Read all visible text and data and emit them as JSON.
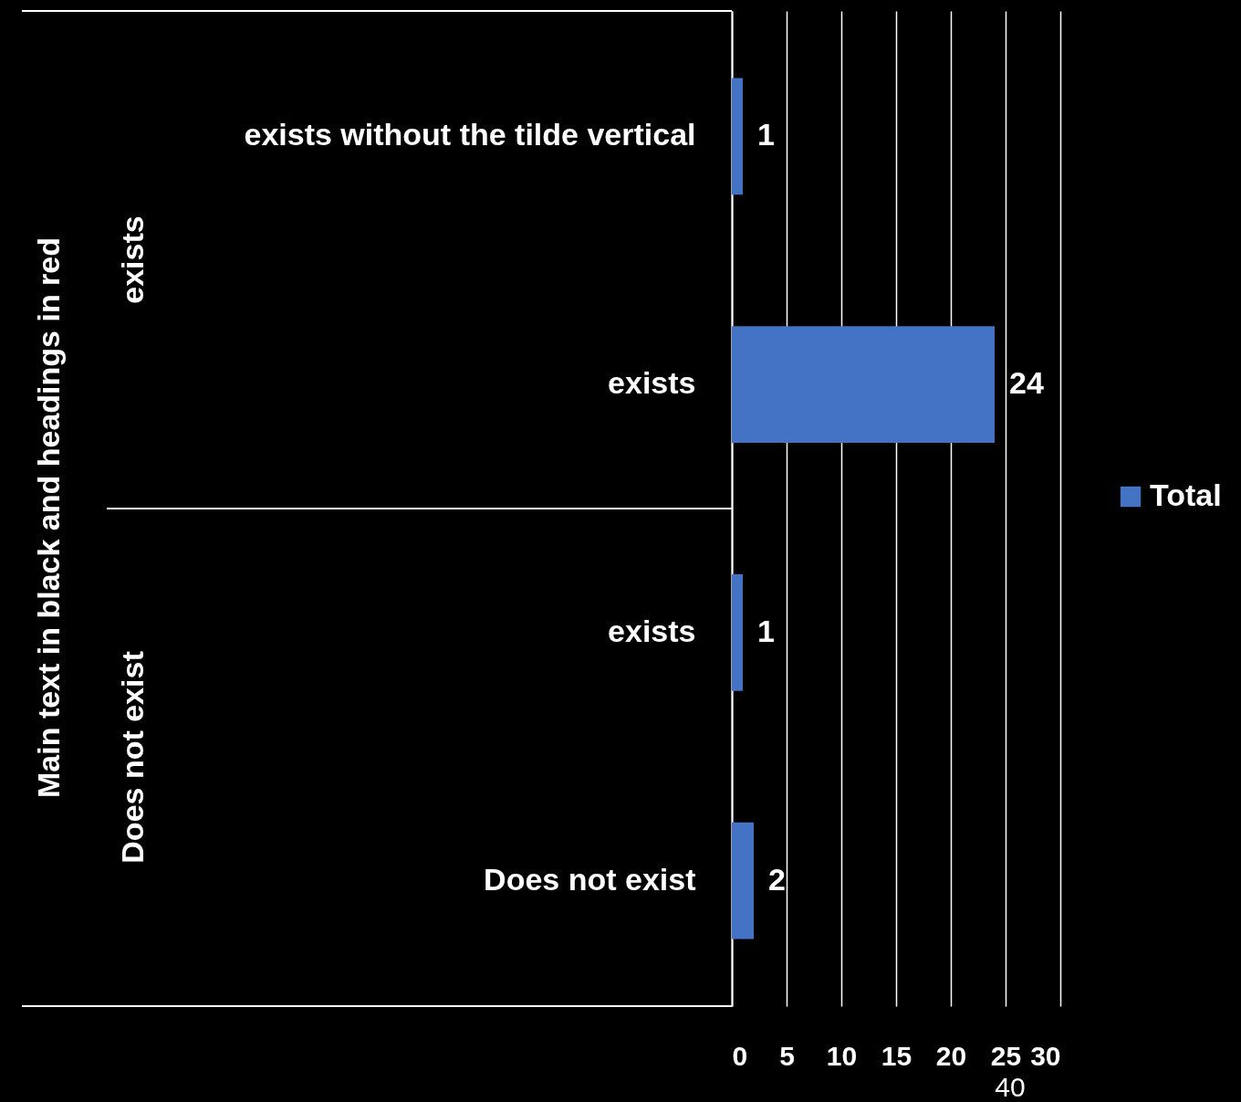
{
  "chart_data": {
    "type": "bar",
    "orientation": "horizontal",
    "categories": [
      "exists without the tilde vertical",
      "exists",
      "exists",
      "Does not exist"
    ],
    "series": [
      {
        "name": "Total",
        "color": "#4472c4",
        "values": [
          1,
          24,
          1,
          2
        ]
      }
    ],
    "annotations": [
      "Main text in black and headings in red",
      "exists",
      "Does not exist",
      "40"
    ],
    "xlim": [
      0,
      30
    ],
    "xticks": [
      0,
      5,
      10,
      15,
      20,
      25,
      30
    ],
    "grid": "x",
    "data_labels": true,
    "legend": "right"
  }
}
